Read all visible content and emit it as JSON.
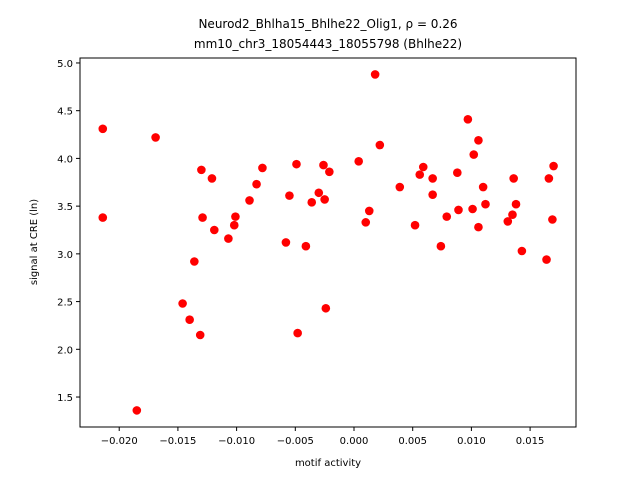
{
  "chart_data": {
    "type": "scatter",
    "title": "Neurod2_Bhlha15_Bhlhe22_Olig1, ρ = 0.26",
    "subtitle": "mm10_chr3_18054443_18055798 (Bhlhe22)",
    "x_label": "motif activity",
    "y_label": "signal at CRE (ln)",
    "color": "#ff0000",
    "x": [
      -0.0214,
      -0.0214,
      -0.0169,
      -0.0185,
      -0.0146,
      -0.014,
      -0.0136,
      -0.0131,
      -0.013,
      -0.0129,
      -0.0121,
      -0.0119,
      -0.0107,
      -0.0102,
      -0.0101,
      -0.0089,
      -0.0083,
      -0.0078,
      -0.0058,
      -0.0055,
      -0.0049,
      -0.0048,
      -0.0041,
      -0.0036,
      -0.003,
      -0.0026,
      -0.0025,
      -0.0024,
      -0.0021,
      0.0004,
      0.001,
      0.0013,
      0.0018,
      0.0022,
      0.0039,
      0.0052,
      0.0056,
      0.0059,
      0.0067,
      0.0067,
      0.0074,
      0.0079,
      0.0088,
      0.0089,
      0.0097,
      0.0101,
      0.0102,
      0.0106,
      0.0106,
      0.011,
      0.0112,
      0.0131,
      0.0135,
      0.0136,
      0.0138,
      0.0143,
      0.0164,
      0.0166,
      0.0169,
      0.017
    ],
    "y": [
      4.31,
      3.38,
      4.22,
      1.36,
      2.48,
      2.31,
      2.92,
      2.15,
      3.88,
      3.38,
      3.79,
      3.25,
      3.16,
      3.3,
      3.39,
      3.56,
      3.73,
      3.9,
      3.12,
      3.61,
      3.94,
      2.17,
      3.08,
      3.54,
      3.64,
      3.93,
      3.57,
      2.43,
      3.86,
      3.97,
      3.33,
      3.45,
      4.88,
      4.14,
      3.7,
      3.3,
      3.83,
      3.91,
      3.79,
      3.62,
      3.08,
      3.39,
      3.85,
      3.46,
      4.41,
      3.47,
      4.04,
      4.19,
      3.28,
      3.7,
      3.52,
      3.34,
      3.41,
      3.79,
      3.52,
      3.03,
      2.94,
      3.79,
      3.36,
      3.92
    ],
    "xlim": [
      -0.02334,
      0.01891
    ],
    "ylim": [
      1.186,
      5.052
    ],
    "xticks": [
      {
        "value": -0.02,
        "label": "−0.020"
      },
      {
        "value": -0.015,
        "label": "−0.015"
      },
      {
        "value": -0.01,
        "label": "−0.010"
      },
      {
        "value": -0.005,
        "label": "−0.005"
      },
      {
        "value": 0,
        "label": "0.000"
      },
      {
        "value": 0.005,
        "label": "0.005"
      },
      {
        "value": 0.01,
        "label": "0.010"
      },
      {
        "value": 0.015,
        "label": "0.015"
      }
    ],
    "yticks": [
      1.5,
      {
        "value": 2,
        "label": "2.0"
      },
      2.5,
      {
        "value": 3,
        "label": "3.0"
      },
      3.5,
      {
        "value": 4,
        "label": "4.0"
      },
      4.5,
      {
        "value": 5,
        "label": "5.0"
      }
    ]
  }
}
